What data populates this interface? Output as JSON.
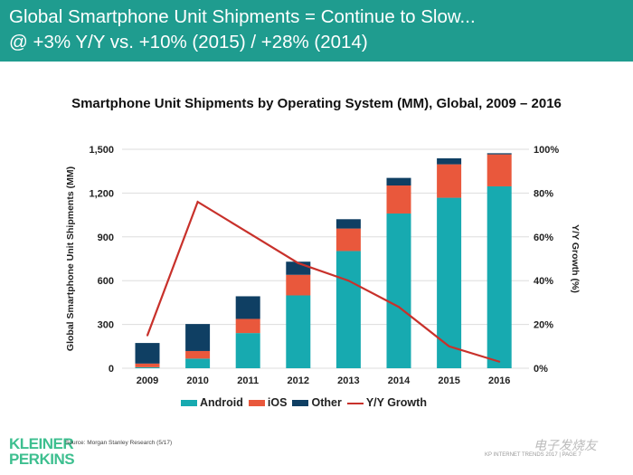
{
  "header": {
    "line1": "Global Smartphone Unit Shipments = Continue to Slow...",
    "line2": "@ +3% Y/Y vs. +10% (2015) / +28% (2014)"
  },
  "colors": {
    "header": "#1f9c8f",
    "android": "#17aab0",
    "ios": "#e9583c",
    "other": "#0f3f63",
    "growth": "#c8312b"
  },
  "chart_data": {
    "type": "bar",
    "stacked": true,
    "title": "Smartphone Unit Shipments by Operating System (MM), Global, 2009 – 2016",
    "categories": [
      "2009",
      "2010",
      "2011",
      "2012",
      "2013",
      "2014",
      "2015",
      "2016"
    ],
    "series": [
      {
        "name": "Android",
        "values": [
          7,
          66,
          241,
          499,
          803,
          1060,
          1168,
          1246
        ]
      },
      {
        "name": "iOS",
        "values": [
          25,
          52,
          97,
          141,
          154,
          192,
          229,
          219
        ]
      },
      {
        "name": "Other",
        "values": [
          141,
          185,
          155,
          90,
          64,
          52,
          41,
          8
        ]
      }
    ],
    "line_series": {
      "name": "Y/Y Growth",
      "axis": "right",
      "values": [
        15,
        76,
        62,
        48,
        40,
        28,
        10,
        3
      ]
    },
    "ylabel": "Global Smartphone Unit Shipments (MM)",
    "y2label": "Y/Y Growth (%)",
    "ylim": [
      0,
      1500
    ],
    "y2lim": [
      0,
      100
    ],
    "yticks": [
      "0",
      "300",
      "600",
      "900",
      "1,200",
      "1,500"
    ],
    "y2ticks": [
      "0%",
      "20%",
      "40%",
      "60%",
      "80%",
      "100%"
    ],
    "grid": true,
    "legend": "bottom"
  },
  "legend": {
    "android": "Android",
    "ios": "iOS",
    "other": "Other",
    "growth": "Y/Y Growth"
  },
  "footer": {
    "logo": "KLEINER PERKINS",
    "source": "Source: Morgan Stanley Research (5/17)",
    "page": "KP INTERNET TRENDS 2017  |  PAGE 7",
    "watermark": "电子发烧友 www.elecfans.com"
  }
}
